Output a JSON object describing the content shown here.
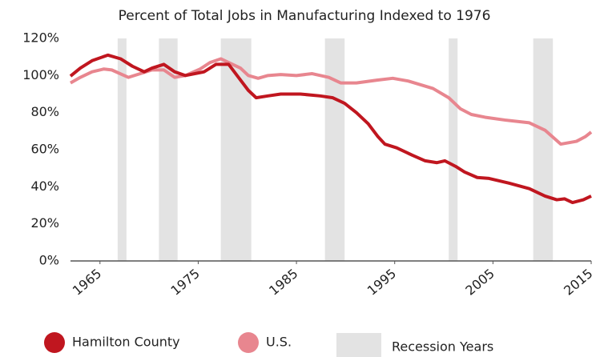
{
  "chart_data": {
    "type": "line",
    "title": "Percent of Total Jobs in Manufacturing Indexed to 1976",
    "xlim": [
      1962,
      2015
    ],
    "xticks": [
      1965,
      1975,
      1985,
      1995,
      2005,
      2015
    ],
    "ylim": [
      0,
      120
    ],
    "yticks": [
      {
        "value": 0,
        "label": "0%"
      },
      {
        "value": 20,
        "label": "20%"
      },
      {
        "value": 40,
        "label": "40%"
      },
      {
        "value": 60,
        "label": "60%"
      },
      {
        "value": 80,
        "label": "80%"
      },
      {
        "value": 100,
        "label": "100%"
      },
      {
        "value": 120,
        "label": "120%"
      }
    ],
    "recession_label": "Recession Years",
    "recession_color": "#e3e3e3",
    "recessions": [
      [
        1966.8,
        1967.7
      ],
      [
        1971.0,
        1972.9
      ],
      [
        1977.3,
        1980.4
      ],
      [
        1987.9,
        1989.9
      ],
      [
        2000.5,
        2001.4
      ],
      [
        2009.1,
        2011.1
      ]
    ],
    "series": [
      {
        "name": "Hamilton County",
        "color": "#c0161f",
        "x": [
          1962.0,
          1963.0,
          1964.2,
          1965.8,
          1967.1,
          1968.3,
          1969.5,
          1970.3,
          1971.5,
          1972.6,
          1973.7,
          1975.6,
          1976.8,
          1978.1,
          1979.1,
          1980.1,
          1980.9,
          1982.1,
          1983.4,
          1985.4,
          1987.4,
          1988.7,
          1989.9,
          1991.1,
          1992.3,
          1993.3,
          1994.0,
          1995.2,
          1996.8,
          1998.1,
          1999.3,
          2000.1,
          2001.2,
          2002.1,
          2003.4,
          2004.6,
          2006.6,
          2008.7,
          2010.3,
          2011.5,
          2012.3,
          2013.1,
          2014.2,
          2015.0
        ],
        "values": [
          99.7,
          104,
          108,
          111,
          109,
          105,
          102,
          104,
          106,
          102,
          100,
          102,
          106,
          106,
          99,
          92,
          88,
          89,
          90,
          90,
          89,
          88,
          85,
          80,
          74,
          67,
          63,
          61,
          57,
          54,
          53,
          54,
          51,
          48,
          45,
          44.5,
          42,
          39,
          35,
          33,
          33.5,
          31.5,
          33,
          35
        ]
      },
      {
        "name": "U.S.",
        "color": "#e8868f",
        "x": [
          1962.0,
          1963.0,
          1964.2,
          1965.4,
          1966.2,
          1967.9,
          1969.1,
          1970.3,
          1971.5,
          1972.6,
          1973.7,
          1975.2,
          1976.2,
          1977.3,
          1978.5,
          1979.3,
          1980.1,
          1981.1,
          1982.1,
          1983.4,
          1985.0,
          1986.6,
          1988.3,
          1989.5,
          1991.1,
          1993.2,
          1994.8,
          1996.4,
          1998.9,
          2000.5,
          2001.7,
          2002.8,
          2004.2,
          2006.2,
          2008.7,
          2010.3,
          2011.9,
          2013.5,
          2014.4,
          2015.0
        ],
        "values": [
          96,
          99,
          102,
          103.5,
          103,
          99,
          101,
          103,
          103,
          99,
          100,
          103.5,
          107,
          109,
          106,
          104,
          100,
          98.5,
          100,
          100.5,
          100,
          101,
          99,
          96,
          96,
          97.5,
          98.5,
          97,
          93,
          88,
          82,
          79,
          77.5,
          76,
          74.5,
          70.5,
          63,
          64.5,
          67,
          69.5
        ]
      }
    ]
  }
}
